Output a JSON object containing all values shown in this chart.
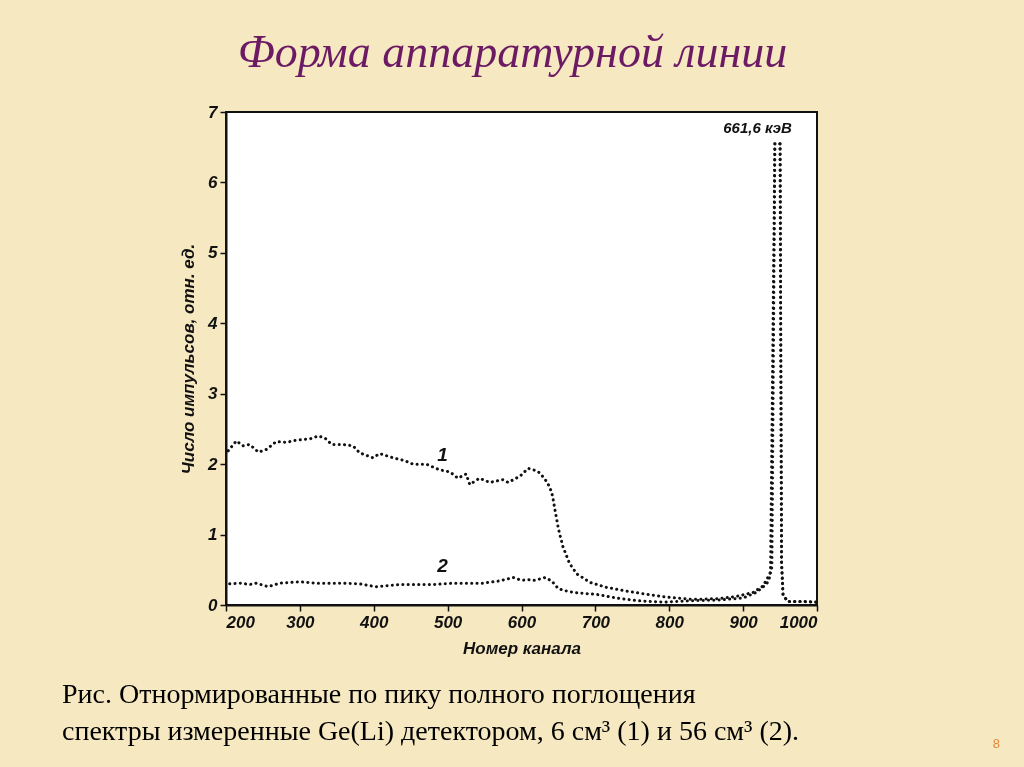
{
  "chart_data": {
    "type": "line",
    "title": "Форма аппаратурной линии",
    "xlabel": "Номер канала",
    "ylabel": "Число импульсов, отн. ед.",
    "xlim": [
      200,
      1000
    ],
    "ylim": [
      0,
      7
    ],
    "xticks": [
      200,
      300,
      400,
      500,
      600,
      700,
      800,
      900,
      1000
    ],
    "yticks": [
      0,
      1,
      2,
      3,
      4,
      5,
      6,
      7
    ],
    "line_style": "dotted",
    "series": [
      {
        "name": "1",
        "color": "#111111",
        "x": [
          203,
          214,
          223,
          232,
          244,
          255,
          268,
          282,
          295,
          314,
          325,
          334,
          343,
          358,
          372,
          381,
          399,
          408,
          426,
          442,
          453,
          471,
          489,
          503,
          514,
          525,
          530,
          543,
          557,
          575,
          582,
          598,
          609,
          622,
          631,
          638,
          642,
          646,
          650,
          656,
          665,
          675,
          693,
          715,
          741,
          771,
          798,
          832,
          866,
          890,
          914,
          927,
          936,
          939,
          943,
          950,
          952,
          954,
          960,
          980,
          1000
        ],
        "values": [
          2.19,
          2.33,
          2.26,
          2.28,
          2.17,
          2.21,
          2.32,
          2.31,
          2.34,
          2.36,
          2.4,
          2.37,
          2.28,
          2.28,
          2.26,
          2.16,
          2.09,
          2.15,
          2.09,
          2.05,
          2.0,
          2.0,
          1.92,
          1.89,
          1.8,
          1.86,
          1.71,
          1.8,
          1.74,
          1.78,
          1.74,
          1.83,
          1.94,
          1.9,
          1.8,
          1.68,
          1.55,
          1.31,
          1.08,
          0.83,
          0.59,
          0.44,
          0.32,
          0.25,
          0.2,
          0.15,
          0.11,
          0.08,
          0.09,
          0.12,
          0.18,
          0.27,
          0.44,
          0.54,
          6.55,
          6.55,
          0.6,
          0.15,
          0.05,
          0.05,
          0.04
        ]
      },
      {
        "name": "2",
        "color": "#111111",
        "x": [
          205,
          221,
          232,
          241,
          257,
          273,
          300,
          322,
          353,
          381,
          403,
          435,
          480,
          508,
          547,
          569,
          589,
          600,
          609,
          618,
          632,
          641,
          650,
          664,
          678,
          702,
          728,
          758,
          793,
          827,
          866,
          900,
          918,
          932,
          937,
          943,
          950,
          952,
          954,
          960,
          980,
          1000
        ],
        "values": [
          0.3,
          0.31,
          0.29,
          0.31,
          0.26,
          0.31,
          0.33,
          0.31,
          0.31,
          0.3,
          0.26,
          0.29,
          0.29,
          0.31,
          0.31,
          0.34,
          0.39,
          0.35,
          0.36,
          0.35,
          0.39,
          0.34,
          0.23,
          0.19,
          0.17,
          0.15,
          0.1,
          0.06,
          0.04,
          0.06,
          0.07,
          0.1,
          0.18,
          0.3,
          0.42,
          6.55,
          6.55,
          0.6,
          0.15,
          0.05,
          0.05,
          0.04
        ]
      }
    ],
    "annotations": [
      {
        "text": "661,6 кэВ",
        "x": 947,
        "y": 6.55
      },
      "Рис. Отнормированные по пику полного поглощения спектры измеренные Ge(Li) детектором, 6 см³ (1) и 56 см³ (2).",
      "8"
    ]
  }
}
